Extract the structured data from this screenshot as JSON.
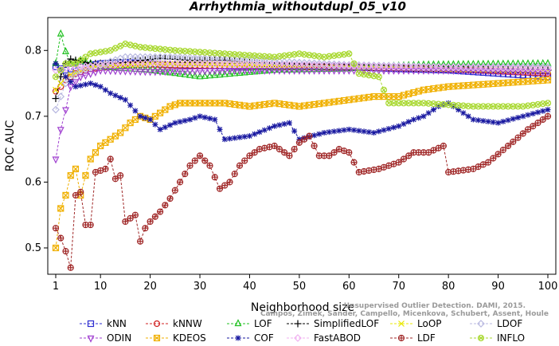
{
  "chart_data": {
    "type": "line",
    "title": "Arrhythmia_withoutdupl_05_v10",
    "xlabel": "Neighborhood size",
    "ylabel": "ROC AUC",
    "xlim": [
      1,
      100
    ],
    "ylim": [
      0.46,
      0.85
    ],
    "xticks": [
      1,
      10,
      20,
      30,
      40,
      50,
      60,
      70,
      80,
      90,
      100
    ],
    "yticks": [
      0.5,
      0.6,
      0.7,
      0.8
    ],
    "grid": false,
    "legend_position": "bottom",
    "watermark": [
      "Campos, Zimek, Sander, Campello, Micenkova, Schubert, Assent, Houle",
      "Unsupervised Outlier Detection. DAMI, 2015."
    ],
    "series": [
      {
        "name": "kNN",
        "color": "#2b2bd0",
        "marker": "square",
        "anchors": [
          [
            1,
            0.775
          ],
          [
            3,
            0.77
          ],
          [
            6,
            0.775
          ],
          [
            10,
            0.78
          ],
          [
            15,
            0.782
          ],
          [
            25,
            0.778
          ],
          [
            40,
            0.775
          ],
          [
            60,
            0.775
          ],
          [
            70,
            0.772
          ],
          [
            80,
            0.77
          ],
          [
            90,
            0.765
          ],
          [
            100,
            0.76
          ]
        ]
      },
      {
        "name": "kNNW",
        "color": "#d02020",
        "marker": "circle",
        "anchors": [
          [
            1,
            0.738
          ],
          [
            2,
            0.745
          ],
          [
            3,
            0.755
          ],
          [
            5,
            0.765
          ],
          [
            8,
            0.772
          ],
          [
            15,
            0.778
          ],
          [
            30,
            0.777
          ],
          [
            50,
            0.775
          ],
          [
            70,
            0.773
          ],
          [
            85,
            0.77
          ],
          [
            100,
            0.765
          ]
        ]
      },
      {
        "name": "LOF",
        "color": "#20c020",
        "marker": "triangle-up",
        "anchors": [
          [
            1,
            0.78
          ],
          [
            2,
            0.825
          ],
          [
            3,
            0.798
          ],
          [
            4,
            0.78
          ],
          [
            6,
            0.785
          ],
          [
            10,
            0.775
          ],
          [
            20,
            0.77
          ],
          [
            30,
            0.76
          ],
          [
            45,
            0.77
          ],
          [
            60,
            0.772
          ],
          [
            65,
            0.775
          ],
          [
            75,
            0.778
          ],
          [
            100,
            0.78
          ]
        ]
      },
      {
        "name": "SimplifiedLOF",
        "color": "#000000",
        "marker": "plus",
        "anchors": [
          [
            1,
            0.727
          ],
          [
            2,
            0.76
          ],
          [
            3,
            0.78
          ],
          [
            4,
            0.787
          ],
          [
            8,
            0.78
          ],
          [
            15,
            0.782
          ],
          [
            22,
            0.788
          ],
          [
            28,
            0.785
          ],
          [
            35,
            0.785
          ],
          [
            45,
            0.778
          ],
          [
            60,
            0.775
          ],
          [
            80,
            0.772
          ],
          [
            100,
            0.77
          ]
        ]
      },
      {
        "name": "LoOP",
        "color": "#e8e800",
        "marker": "x",
        "anchors": [
          [
            1,
            0.74
          ],
          [
            3,
            0.76
          ],
          [
            8,
            0.775
          ],
          [
            20,
            0.78
          ],
          [
            40,
            0.778
          ],
          [
            60,
            0.775
          ],
          [
            80,
            0.772
          ],
          [
            100,
            0.77
          ]
        ]
      },
      {
        "name": "LDOF",
        "color": "#b8b8e0",
        "marker": "diamond",
        "anchors": [
          [
            1,
            0.71
          ],
          [
            3,
            0.75
          ],
          [
            6,
            0.77
          ],
          [
            15,
            0.79
          ],
          [
            25,
            0.79
          ],
          [
            40,
            0.785
          ],
          [
            60,
            0.778
          ],
          [
            80,
            0.775
          ],
          [
            100,
            0.775
          ]
        ]
      },
      {
        "name": "ODIN",
        "color": "#a040d0",
        "marker": "triangle-down",
        "anchors": [
          [
            1,
            0.635
          ],
          [
            2,
            0.68
          ],
          [
            3,
            0.71
          ],
          [
            4,
            0.745
          ],
          [
            6,
            0.76
          ],
          [
            10,
            0.77
          ],
          [
            20,
            0.768
          ],
          [
            40,
            0.77
          ],
          [
            60,
            0.77
          ],
          [
            80,
            0.77
          ],
          [
            100,
            0.768
          ]
        ]
      },
      {
        "name": "KDEOS",
        "color": "#f0b000",
        "marker": "square-x",
        "anchors": [
          [
            1,
            0.5
          ],
          [
            2,
            0.56
          ],
          [
            3,
            0.58
          ],
          [
            4,
            0.61
          ],
          [
            5,
            0.62
          ],
          [
            6,
            0.58
          ],
          [
            7,
            0.61
          ],
          [
            8,
            0.635
          ],
          [
            10,
            0.655
          ],
          [
            12,
            0.665
          ],
          [
            14,
            0.675
          ],
          [
            16,
            0.69
          ],
          [
            18,
            0.7
          ],
          [
            20,
            0.695
          ],
          [
            22,
            0.705
          ],
          [
            24,
            0.715
          ],
          [
            26,
            0.72
          ],
          [
            30,
            0.72
          ],
          [
            35,
            0.72
          ],
          [
            40,
            0.715
          ],
          [
            45,
            0.72
          ],
          [
            50,
            0.715
          ],
          [
            55,
            0.72
          ],
          [
            60,
            0.725
          ],
          [
            65,
            0.73
          ],
          [
            70,
            0.73
          ],
          [
            75,
            0.74
          ],
          [
            80,
            0.745
          ],
          [
            90,
            0.75
          ],
          [
            100,
            0.755
          ]
        ]
      },
      {
        "name": "COF",
        "color": "#1818a0",
        "marker": "asterisk",
        "anchors": [
          [
            1,
            0.78
          ],
          [
            3,
            0.76
          ],
          [
            5,
            0.745
          ],
          [
            8,
            0.75
          ],
          [
            10,
            0.745
          ],
          [
            12,
            0.735
          ],
          [
            15,
            0.725
          ],
          [
            18,
            0.7
          ],
          [
            20,
            0.695
          ],
          [
            22,
            0.68
          ],
          [
            25,
            0.69
          ],
          [
            28,
            0.695
          ],
          [
            30,
            0.7
          ],
          [
            33,
            0.695
          ],
          [
            35,
            0.665
          ],
          [
            40,
            0.67
          ],
          [
            45,
            0.685
          ],
          [
            48,
            0.69
          ],
          [
            50,
            0.665
          ],
          [
            55,
            0.675
          ],
          [
            60,
            0.68
          ],
          [
            65,
            0.675
          ],
          [
            70,
            0.685
          ],
          [
            73,
            0.695
          ],
          [
            75,
            0.7
          ],
          [
            78,
            0.715
          ],
          [
            80,
            0.72
          ],
          [
            85,
            0.695
          ],
          [
            90,
            0.69
          ],
          [
            95,
            0.7
          ],
          [
            100,
            0.71
          ]
        ]
      },
      {
        "name": "FastABOD",
        "color": "#f0b0f0",
        "marker": "diamond",
        "anchors": [
          [
            1,
            0.77
          ],
          [
            5,
            0.775
          ],
          [
            15,
            0.78
          ],
          [
            30,
            0.78
          ],
          [
            50,
            0.778
          ],
          [
            70,
            0.775
          ],
          [
            100,
            0.772
          ]
        ]
      },
      {
        "name": "LDF",
        "color": "#a02828",
        "marker": "circle-plus",
        "anchors": [
          [
            1,
            0.53
          ],
          [
            2,
            0.515
          ],
          [
            3,
            0.495
          ],
          [
            4,
            0.47
          ],
          [
            5,
            0.58
          ],
          [
            6,
            0.585
          ],
          [
            7,
            0.535
          ],
          [
            8,
            0.535
          ],
          [
            9,
            0.615
          ],
          [
            11,
            0.62
          ],
          [
            12,
            0.635
          ],
          [
            13,
            0.605
          ],
          [
            14,
            0.61
          ],
          [
            15,
            0.54
          ],
          [
            16,
            0.545
          ],
          [
            17,
            0.55
          ],
          [
            18,
            0.51
          ],
          [
            19,
            0.53
          ],
          [
            20,
            0.54
          ],
          [
            22,
            0.555
          ],
          [
            24,
            0.575
          ],
          [
            26,
            0.6
          ],
          [
            28,
            0.625
          ],
          [
            30,
            0.64
          ],
          [
            32,
            0.625
          ],
          [
            34,
            0.59
          ],
          [
            36,
            0.6
          ],
          [
            38,
            0.625
          ],
          [
            40,
            0.64
          ],
          [
            42,
            0.65
          ],
          [
            45,
            0.655
          ],
          [
            48,
            0.64
          ],
          [
            50,
            0.66
          ],
          [
            52,
            0.67
          ],
          [
            54,
            0.64
          ],
          [
            56,
            0.64
          ],
          [
            58,
            0.65
          ],
          [
            60,
            0.645
          ],
          [
            62,
            0.615
          ],
          [
            66,
            0.62
          ],
          [
            70,
            0.63
          ],
          [
            73,
            0.645
          ],
          [
            76,
            0.645
          ],
          [
            79,
            0.655
          ],
          [
            80,
            0.615
          ],
          [
            85,
            0.62
          ],
          [
            88,
            0.63
          ],
          [
            92,
            0.655
          ],
          [
            96,
            0.68
          ],
          [
            100,
            0.7
          ]
        ]
      },
      {
        "name": "INFLO",
        "color": "#a8d830",
        "marker": "circle-x",
        "anchors": [
          [
            1,
            0.76
          ],
          [
            3,
            0.78
          ],
          [
            5,
            0.78
          ],
          [
            8,
            0.795
          ],
          [
            12,
            0.8
          ],
          [
            15,
            0.81
          ],
          [
            18,
            0.805
          ],
          [
            25,
            0.8
          ],
          [
            35,
            0.795
          ],
          [
            45,
            0.79
          ],
          [
            50,
            0.795
          ],
          [
            55,
            0.79
          ],
          [
            60,
            0.795
          ],
          [
            62,
            0.765
          ],
          [
            66,
            0.76
          ],
          [
            68,
            0.72
          ],
          [
            75,
            0.72
          ],
          [
            85,
            0.715
          ],
          [
            95,
            0.715
          ],
          [
            100,
            0.72
          ]
        ]
      }
    ]
  }
}
